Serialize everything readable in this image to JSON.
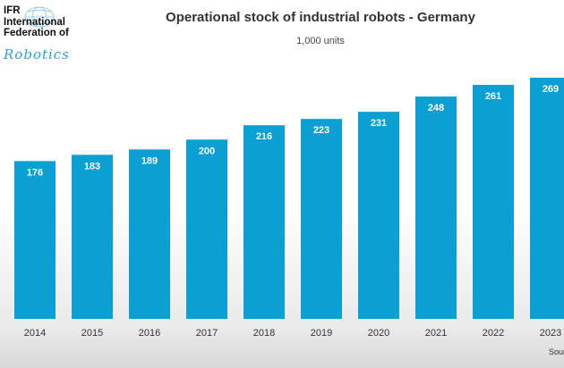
{
  "logo": {
    "lines": [
      "IFR",
      "International",
      "Federation of",
      "Robotics"
    ],
    "accent_color": "#2aa3d6"
  },
  "chart_data": {
    "type": "bar",
    "title": "Operational stock of industrial robots - Germany",
    "subtitle": "1,000 units",
    "categories": [
      "2014",
      "2015",
      "2016",
      "2017",
      "2018",
      "2019",
      "2020",
      "2021",
      "2022",
      "2023"
    ],
    "values": [
      176,
      183,
      189,
      200,
      216,
      223,
      231,
      248,
      261,
      269
    ],
    "data_labels": [
      "176",
      "183",
      "189",
      "200",
      "216",
      "223",
      "231",
      "248",
      "261",
      "269"
    ],
    "ylim": [
      0,
      269
    ],
    "grid": false,
    "legend": "none",
    "bar_color": "#0c9fd3"
  },
  "source_note": "Sour"
}
